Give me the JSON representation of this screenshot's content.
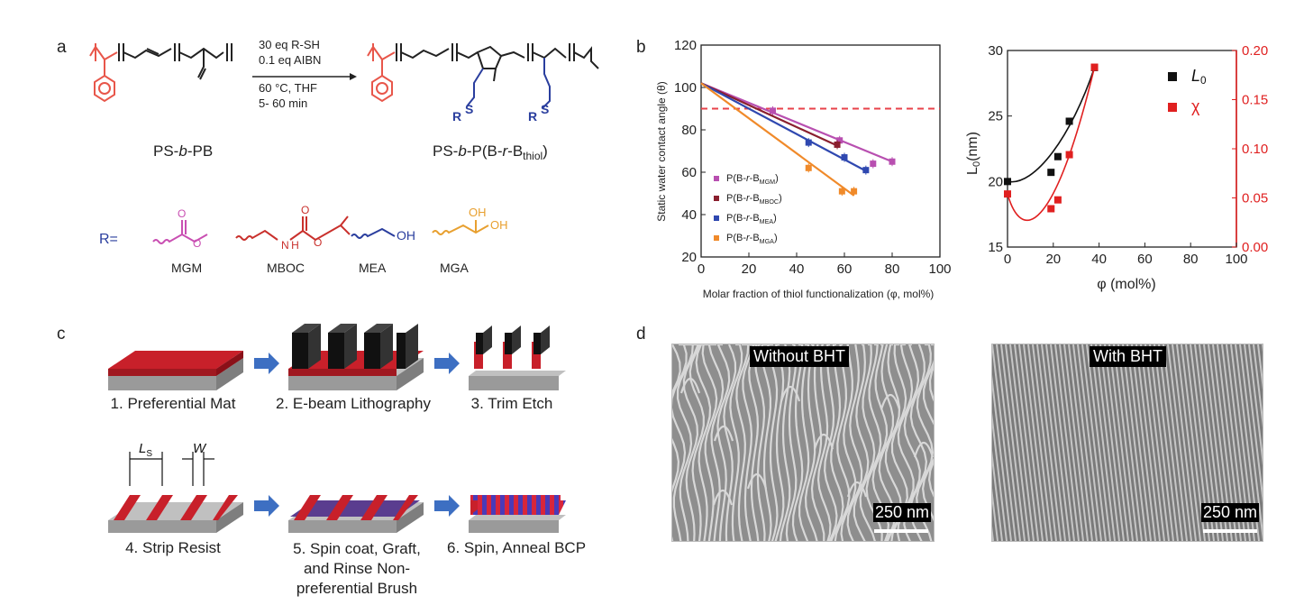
{
  "panels": {
    "a": "a",
    "b": "b",
    "c": "c",
    "d": "d"
  },
  "scheme": {
    "conditions": [
      "30 eq R-SH",
      "0.1 eq AIBN",
      "60 °C, THF",
      "5- 60 min"
    ],
    "reactant_name_parts": [
      "PS-",
      "b",
      "-PB"
    ],
    "product_name_parts": [
      "PS-",
      "b",
      "-P(B-",
      "r",
      "-B",
      "thiol",
      ")"
    ],
    "r_label": "R=",
    "groups": [
      {
        "name": "MGM",
        "color": "#c94fb2"
      },
      {
        "name": "MBOC",
        "color": "#c9302c"
      },
      {
        "name": "MEA",
        "color": "#2a3e9e"
      },
      {
        "name": "MGA",
        "color": "#e8a030"
      }
    ],
    "atoms": {
      "O": "O",
      "OH": "OH",
      "NH": "N H",
      "S": "S",
      "R": "R"
    }
  },
  "chart_data": [
    {
      "type": "scatter",
      "xlabel": "Molar fraction of thiol functionalization (φ, mol%)",
      "ylabel": "Static water contact angle (θ)",
      "xlim": [
        0,
        100
      ],
      "ylim": [
        20,
        120
      ],
      "xticks": [
        0,
        20,
        40,
        60,
        80,
        100
      ],
      "yticks": [
        20,
        40,
        60,
        80,
        100,
        120
      ],
      "reference_line_y": 90,
      "reference_line_color": "#e8424a",
      "series": [
        {
          "name": "P(B-r-B_MGM)",
          "name_parts": [
            "P(B-",
            "r",
            "-B",
            "MGM",
            ")"
          ],
          "color": "#b84fb0",
          "points": [
            [
              30,
              89
            ],
            [
              58,
              75
            ],
            [
              72,
              64
            ],
            [
              80,
              65
            ]
          ],
          "fit": [
            [
              0,
              102
            ],
            [
              80,
              65
            ]
          ]
        },
        {
          "name": "P(B-r-B_MBOC)",
          "name_parts": [
            "P(B-",
            "r",
            "-B",
            "MBOC",
            ")"
          ],
          "color": "#8a1f2e",
          "points": [
            [
              57,
              73
            ]
          ],
          "fit": [
            [
              0,
              102
            ],
            [
              58,
              72
            ]
          ]
        },
        {
          "name": "P(B-r-B_MEA)",
          "name_parts": [
            "P(B-",
            "r",
            "-B",
            "MEA",
            ")"
          ],
          "color": "#2f48b0",
          "points": [
            [
              45,
              74
            ],
            [
              60,
              67
            ],
            [
              69,
              61
            ]
          ],
          "fit": [
            [
              0,
              102
            ],
            [
              70,
              60
            ]
          ]
        },
        {
          "name": "P(B-r-B_MGA)",
          "name_parts": [
            "P(B-",
            "r",
            "-B",
            "MGA",
            ")"
          ],
          "color": "#f08a2a",
          "points": [
            [
              45,
              62
            ],
            [
              59,
              51
            ],
            [
              64,
              51
            ]
          ],
          "fit": [
            [
              0,
              102
            ],
            [
              64,
              49
            ]
          ]
        }
      ]
    },
    {
      "type": "scatter",
      "xlabel": "φ (mol%)",
      "ylabel_left": "L0(nm)",
      "ylabel_left_parts": [
        "L",
        "0",
        "(nm)"
      ],
      "xlim": [
        0,
        100
      ],
      "ylim_left": [
        15,
        30
      ],
      "ylim_right": [
        0,
        0.2
      ],
      "xticks": [
        0,
        20,
        40,
        60,
        80,
        100
      ],
      "yticks_left": [
        15,
        20,
        25,
        30
      ],
      "yticks_right": [
        "0.00",
        "0.05",
        "0.10",
        "0.15",
        "0.20"
      ],
      "legend_position": "top-right",
      "series": [
        {
          "name": "L0",
          "name_parts": [
            "L",
            "0"
          ],
          "axis": "left",
          "color": "#111111",
          "points": [
            [
              0,
              20.0
            ],
            [
              19,
              20.7
            ],
            [
              22,
              21.9
            ],
            [
              27,
              24.6
            ],
            [
              38,
              28.7
            ]
          ]
        },
        {
          "name": "χ",
          "name_parts": [
            "χ",
            ""
          ],
          "axis": "right",
          "color": "#e02020",
          "points": [
            [
              0,
              0.054
            ],
            [
              19,
              0.039
            ],
            [
              22,
              0.048
            ],
            [
              27,
              0.094
            ],
            [
              38,
              0.183
            ]
          ]
        }
      ]
    }
  ],
  "process": {
    "steps": [
      "1. Preferential Mat",
      "2. E-beam Lithography",
      "3. Trim Etch",
      "4. Strip Resist",
      "5. Spin coat, Graft,\nand Rinse Non-\npreferential Brush",
      "6. Spin, Anneal BCP"
    ],
    "dim_ls": [
      "L",
      "S"
    ],
    "dim_w": "W"
  },
  "micrographs": [
    {
      "label": "Without BHT",
      "scale": "250 nm"
    },
    {
      "label": "With BHT",
      "scale": "250 nm"
    }
  ]
}
